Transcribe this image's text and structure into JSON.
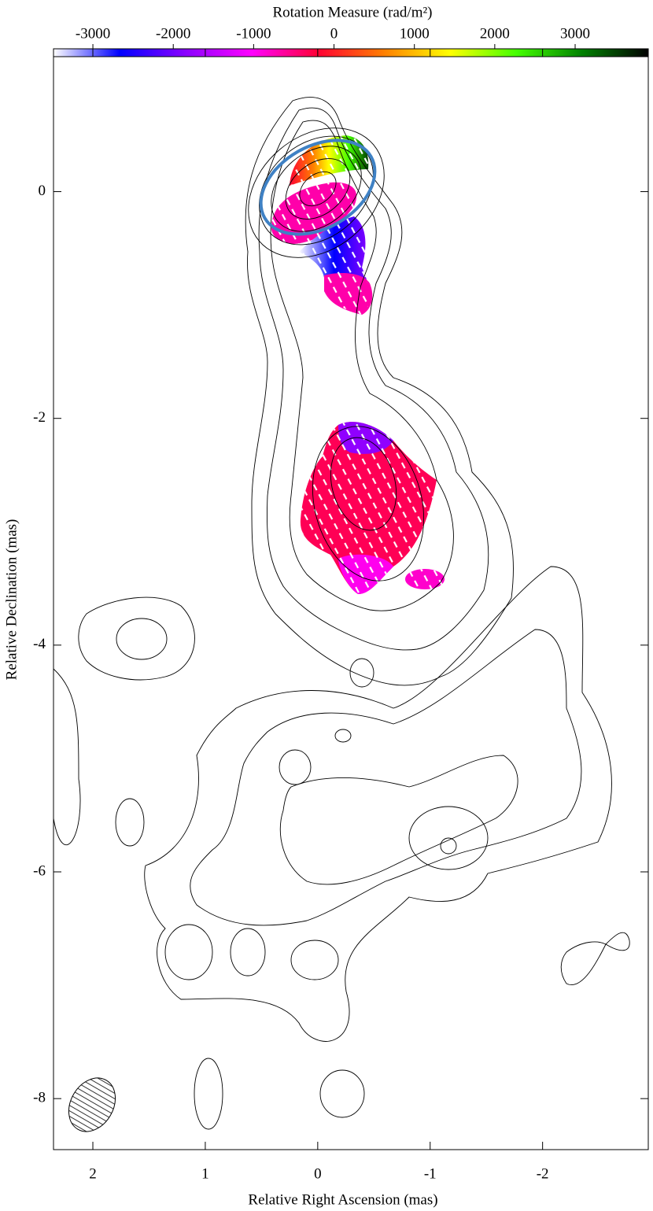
{
  "chart_data": {
    "type": "map",
    "colorbar": {
      "title": "Rotation Measure (rad/m²)",
      "lim": [
        -3490,
        3910
      ],
      "ticks": [
        -3000,
        -2000,
        -1000,
        0,
        1000,
        2000,
        3000
      ],
      "colors": [
        "#ffffff",
        "#0000ff",
        "#8a00ff",
        "#ff00ff",
        "#ff0033",
        "#ff7f00",
        "#ffff00",
        "#44ff00",
        "#008000",
        "#000000"
      ]
    },
    "xlabel": "Relative Right Ascension (mas)",
    "ylabel": "Relative Declination (mas)",
    "xlim": [
      2.35,
      -2.94
    ],
    "xticks": [
      2,
      1,
      0,
      -1,
      -2
    ],
    "ylim": [
      -8.45,
      1.26
    ],
    "yticks": [
      0,
      -2,
      -4,
      -6,
      -8
    ]
  }
}
